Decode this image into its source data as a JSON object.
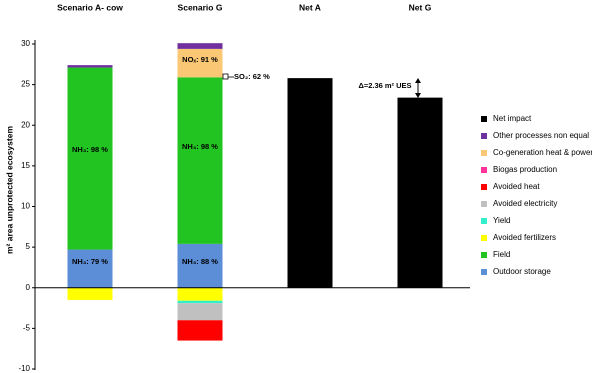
{
  "chart_data": {
    "type": "stacked-bar",
    "y_label": "m² area unprotected ecosystem",
    "categories": [
      "Scenario A- cow",
      "Scenario G",
      "Net A",
      "Net G"
    ],
    "ylim": [
      -10,
      30
    ],
    "yticks": [
      -10,
      -5,
      0,
      5,
      10,
      15,
      20,
      25,
      30
    ],
    "series": [
      {
        "name": "Outdoor storage",
        "color": "#5b8ed6",
        "values": [
          4.7,
          5.4,
          null,
          null
        ]
      },
      {
        "name": "Field",
        "color": "#22c422",
        "values": [
          22.4,
          20.5,
          null,
          null
        ]
      },
      {
        "name": "Avoided fertilizers",
        "color": "#ffff00",
        "values": [
          -1.5,
          -1.6,
          null,
          null
        ]
      },
      {
        "name": "Yield",
        "color": "#33f0cc",
        "values": [
          null,
          -0.3,
          null,
          null
        ]
      },
      {
        "name": "Avoided electricity",
        "color": "#c0c0c0",
        "values": [
          null,
          -2.1,
          null,
          null
        ]
      },
      {
        "name": "Avoided heat",
        "color": "#ff0000",
        "values": [
          null,
          -2.5,
          null,
          null
        ]
      },
      {
        "name": "Biogas production",
        "color": "#ff3399",
        "values": [
          null,
          null,
          null,
          null
        ]
      },
      {
        "name": "Co-generation heat & power",
        "color": "#fac775",
        "values": [
          null,
          3.5,
          null,
          null
        ]
      },
      {
        "name": "Other processes non equal",
        "color": "#7030a0",
        "values": [
          0.3,
          0.7,
          null,
          null
        ]
      },
      {
        "name": "Net impact",
        "color": "#000000",
        "values": [
          null,
          null,
          25.8,
          23.4
        ]
      }
    ],
    "annotations": [
      "NH₃: 79 %",
      "NH₃: 98 %",
      "NH₃: 88 %",
      "NH₃: 98 %",
      "NOₓ: 91 %",
      "SO₂: 62 %",
      "Δ=2.36 m² UES"
    ]
  }
}
